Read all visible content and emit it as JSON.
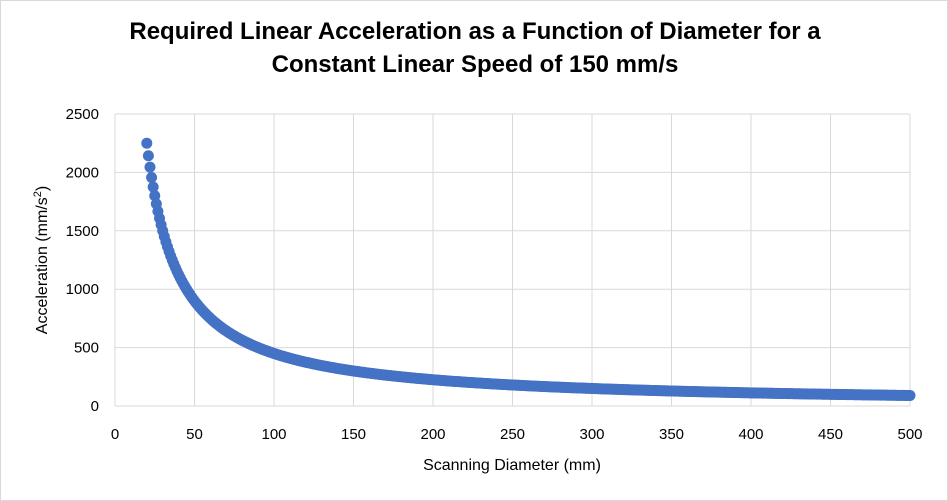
{
  "chart_data": {
    "type": "scatter",
    "title_line1": "Required Linear Acceleration as a Function of Diameter for a",
    "title_line2": "Constant Linear Speed of 150 mm/s",
    "xlabel": "Scanning Diameter (mm)",
    "ylabel_prefix": "Acceleration (mm/s",
    "ylabel_sup": "2",
    "ylabel_suffix": ")",
    "xlim": [
      0,
      500
    ],
    "ylim": [
      0,
      2500
    ],
    "xticks": [
      0,
      50,
      100,
      150,
      200,
      250,
      300,
      350,
      400,
      450,
      500
    ],
    "yticks": [
      0,
      500,
      1000,
      1500,
      2000,
      2500
    ],
    "grid": true,
    "series": [
      {
        "color": "#4472c4",
        "speed": 150,
        "x_start": 20,
        "x_end": 500,
        "x_step": 1,
        "formula": "2*speed^2/x"
      }
    ],
    "sample_points": [
      {
        "x": 20,
        "y": 2250
      },
      {
        "x": 30,
        "y": 1500
      },
      {
        "x": 50,
        "y": 900
      },
      {
        "x": 100,
        "y": 450
      },
      {
        "x": 150,
        "y": 300
      },
      {
        "x": 200,
        "y": 225
      },
      {
        "x": 300,
        "y": 150
      },
      {
        "x": 400,
        "y": 112.5
      },
      {
        "x": 500,
        "y": 90
      }
    ]
  }
}
